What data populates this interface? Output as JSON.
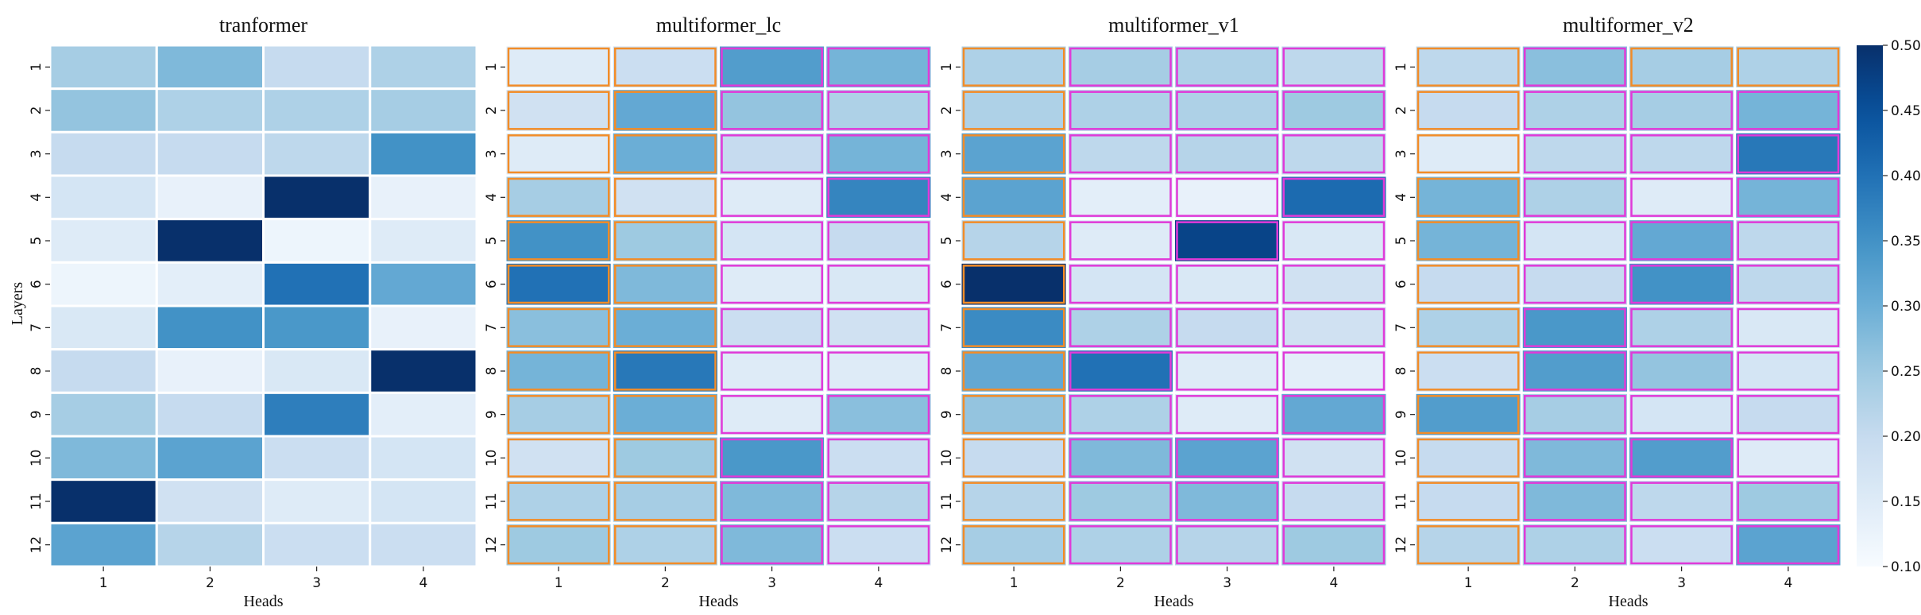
{
  "chart_data": {
    "type": "heatmap",
    "colormap": "Blues",
    "vmin": 0.1,
    "vmax": 0.5,
    "colorbar_ticks": [
      "0.10",
      "0.15",
      "0.20",
      "0.25",
      "0.30",
      "0.35",
      "0.40",
      "0.45",
      "0.50"
    ],
    "heads": [
      "1",
      "2",
      "3",
      "4"
    ],
    "layers": [
      "1",
      "2",
      "3",
      "4",
      "5",
      "6",
      "7",
      "8",
      "9",
      "10",
      "11",
      "12"
    ],
    "xlabel": "Heads",
    "ylabel": "Layers",
    "outline_colors": {
      "orange": "#f28c28",
      "magenta": "#e03ad8"
    },
    "panels": [
      {
        "title": "tranformer",
        "values": [
          [
            0.24,
            0.28,
            0.2,
            0.23
          ],
          [
            0.26,
            0.23,
            0.23,
            0.24
          ],
          [
            0.2,
            0.2,
            0.21,
            0.35
          ],
          [
            0.17,
            0.13,
            0.5,
            0.13
          ],
          [
            0.15,
            0.5,
            0.12,
            0.15
          ],
          [
            0.12,
            0.14,
            0.4,
            0.31
          ],
          [
            0.16,
            0.35,
            0.34,
            0.13
          ],
          [
            0.2,
            0.13,
            0.16,
            0.5
          ],
          [
            0.24,
            0.2,
            0.38,
            0.14
          ],
          [
            0.28,
            0.32,
            0.19,
            0.17
          ],
          [
            0.5,
            0.18,
            0.15,
            0.17
          ],
          [
            0.32,
            0.22,
            0.19,
            0.19
          ]
        ],
        "outlines": []
      },
      {
        "title": "multiformer_lc",
        "values": [
          [
            0.15,
            0.19,
            0.33,
            0.29
          ],
          [
            0.18,
            0.31,
            0.26,
            0.23
          ],
          [
            0.15,
            0.3,
            0.2,
            0.29
          ],
          [
            0.24,
            0.18,
            0.15,
            0.37
          ],
          [
            0.35,
            0.25,
            0.17,
            0.2
          ],
          [
            0.4,
            0.28,
            0.15,
            0.16
          ],
          [
            0.27,
            0.3,
            0.19,
            0.18
          ],
          [
            0.29,
            0.39,
            0.15,
            0.15
          ],
          [
            0.24,
            0.3,
            0.15,
            0.27
          ],
          [
            0.18,
            0.25,
            0.34,
            0.19
          ],
          [
            0.23,
            0.24,
            0.28,
            0.22
          ],
          [
            0.25,
            0.23,
            0.28,
            0.19
          ]
        ],
        "outlines": [
          "orange",
          "orange",
          "magenta",
          "magenta"
        ]
      },
      {
        "title": "multiformer_v1",
        "values": [
          [
            0.23,
            0.24,
            0.23,
            0.21
          ],
          [
            0.23,
            0.23,
            0.23,
            0.25
          ],
          [
            0.32,
            0.21,
            0.22,
            0.21
          ],
          [
            0.32,
            0.14,
            0.13,
            0.41
          ],
          [
            0.22,
            0.15,
            0.47,
            0.16
          ],
          [
            0.5,
            0.17,
            0.16,
            0.18
          ],
          [
            0.36,
            0.23,
            0.2,
            0.18
          ],
          [
            0.31,
            0.4,
            0.15,
            0.14
          ],
          [
            0.26,
            0.23,
            0.15,
            0.31
          ],
          [
            0.2,
            0.28,
            0.32,
            0.18
          ],
          [
            0.22,
            0.25,
            0.28,
            0.2
          ],
          [
            0.24,
            0.23,
            0.22,
            0.25
          ]
        ],
        "outlines": [
          "orange",
          "magenta",
          "magenta",
          "magenta"
        ]
      },
      {
        "title": "multiformer_v2",
        "values": [
          [
            0.21,
            0.27,
            0.24,
            0.23
          ],
          [
            0.2,
            0.23,
            0.24,
            0.29
          ],
          [
            0.15,
            0.21,
            0.21,
            0.39
          ],
          [
            0.29,
            0.23,
            0.15,
            0.29
          ],
          [
            0.29,
            0.17,
            0.31,
            0.21
          ],
          [
            0.2,
            0.2,
            0.35,
            0.21
          ],
          [
            0.23,
            0.34,
            0.23,
            0.16
          ],
          [
            0.19,
            0.33,
            0.26,
            0.17
          ],
          [
            0.33,
            0.24,
            0.17,
            0.2
          ],
          [
            0.2,
            0.28,
            0.33,
            0.15
          ],
          [
            0.2,
            0.28,
            0.21,
            0.25
          ],
          [
            0.22,
            0.23,
            0.19,
            0.32
          ]
        ],
        "outlines": [
          "orange",
          "magenta",
          "magenta",
          "magenta"
        ],
        "outline_overrides": [
          {
            "layer": 1,
            "head": 3,
            "color": "orange"
          },
          {
            "layer": 1,
            "head": 4,
            "color": "orange"
          },
          {
            "layer": 4,
            "head": 1,
            "color": "orange"
          },
          {
            "layer": 7,
            "head": 4,
            "color": "magenta"
          },
          {
            "layer": 12,
            "head": 3,
            "color": "magenta"
          }
        ]
      }
    ]
  }
}
